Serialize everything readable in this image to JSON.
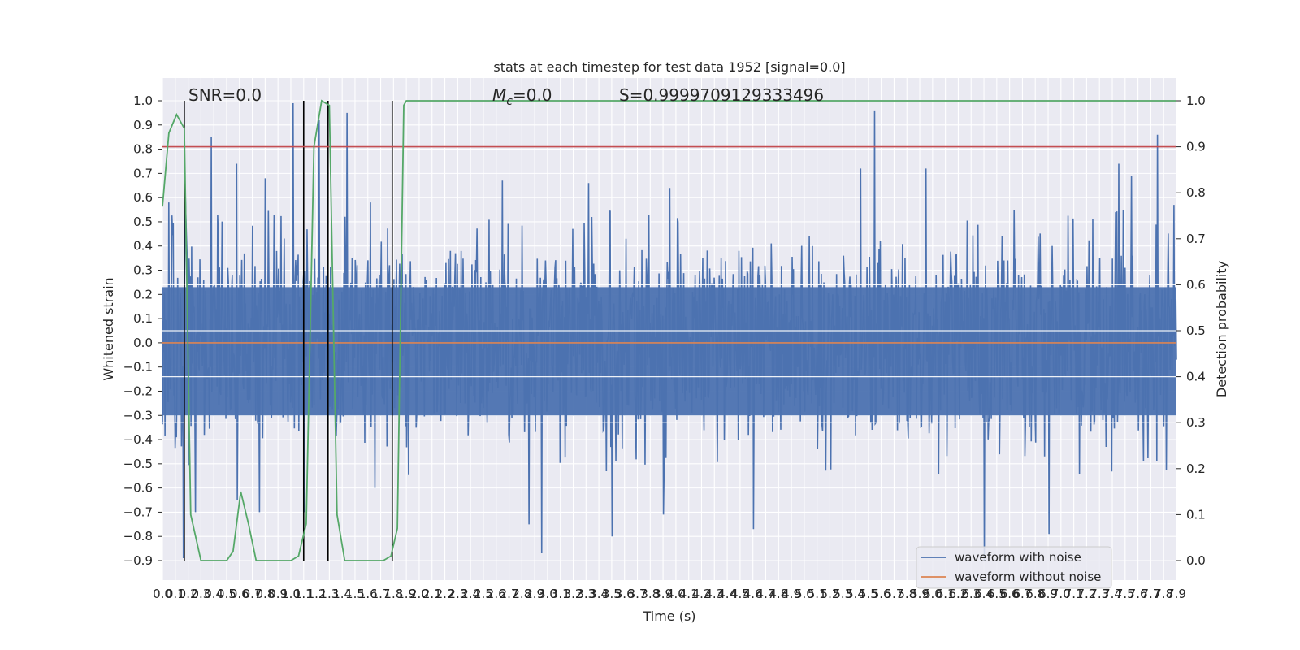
{
  "chart_data": {
    "type": "line",
    "title": "stats at each timestep for test data 1952 [signal=0.0]",
    "xlabel": "Time (s)",
    "ylabel": "Whitened strain",
    "y2label": "Detection probability",
    "xlim": [
      0.0,
      7.9
    ],
    "ylim": [
      -0.9,
      1.0
    ],
    "y2lim": [
      0.0,
      1.0
    ],
    "xticks": [
      "0.0",
      "0.1",
      "0.2",
      "0.3",
      "0.4",
      "0.5",
      "0.6",
      "0.7",
      "0.8",
      "0.9",
      "1.0",
      "1.1",
      "1.2",
      "1.3",
      "1.4",
      "1.5",
      "1.6",
      "1.7",
      "1.8",
      "1.9",
      "2.0",
      "2.1",
      "2.2",
      "2.3",
      "2.4",
      "2.5",
      "2.6",
      "2.7",
      "2.8",
      "2.9",
      "3.0",
      "3.1",
      "3.2",
      "3.3",
      "3.4",
      "3.5",
      "3.6",
      "3.7",
      "3.8",
      "3.9",
      "4.0",
      "4.1",
      "4.2",
      "4.3",
      "4.4",
      "4.5",
      "4.6",
      "4.7",
      "4.8",
      "4.9",
      "5.0",
      "5.1",
      "5.2",
      "5.3",
      "5.4",
      "5.5",
      "5.6",
      "5.7",
      "5.8",
      "5.9",
      "6.0",
      "6.1",
      "6.2",
      "6.3",
      "6.4",
      "6.5",
      "6.6",
      "6.7",
      "6.8",
      "6.9",
      "7.0",
      "7.1",
      "7.2",
      "7.3",
      "7.4",
      "7.5",
      "7.6",
      "7.7",
      "7.8",
      "7.9"
    ],
    "yticks": [
      "1.0",
      "0.9",
      "0.8",
      "0.7",
      "0.6",
      "0.5",
      "0.4",
      "0.3",
      "0.2",
      "0.1",
      "0.0",
      "-0.1",
      "-0.2",
      "-0.3",
      "-0.4",
      "-0.5",
      "-0.6",
      "-0.7",
      "-0.8",
      "-0.9"
    ],
    "y2ticks": [
      "1.0",
      "0.9",
      "0.8",
      "0.7",
      "0.6",
      "0.5",
      "0.4",
      "0.3",
      "0.2",
      "0.1",
      "0.0"
    ],
    "annotations": {
      "snr": "SNR=0.0",
      "mc_symbol": "M",
      "mc_sub": "c",
      "mc_value": "=0.0",
      "s": "S=0.9999709129333496"
    },
    "series": [
      {
        "name": "waveform with noise",
        "color": "#4c72b0",
        "note": "dense noise; envelope peaks (t, y)",
        "peaks_pos": [
          [
            0.05,
            0.58
          ],
          [
            0.18,
            0.62
          ],
          [
            0.38,
            0.85
          ],
          [
            0.58,
            0.74
          ],
          [
            0.8,
            0.68
          ],
          [
            1.02,
            0.99
          ],
          [
            1.22,
            0.92
          ],
          [
            1.44,
            0.95
          ],
          [
            1.62,
            0.58
          ],
          [
            2.65,
            0.67
          ],
          [
            3.32,
            0.66
          ],
          [
            3.95,
            0.64
          ],
          [
            5.44,
            0.72
          ],
          [
            5.55,
            0.96
          ],
          [
            5.95,
            0.72
          ],
          [
            7.45,
            0.74
          ],
          [
            7.55,
            0.69
          ],
          [
            7.75,
            0.86
          ],
          [
            7.88,
            0.57
          ]
        ],
        "peaks_neg": [
          [
            0.16,
            -0.89
          ],
          [
            0.25,
            -0.7
          ],
          [
            0.58,
            -0.65
          ],
          [
            0.75,
            -0.7
          ],
          [
            1.1,
            -0.7
          ],
          [
            1.65,
            -0.6
          ],
          [
            2.85,
            -0.75
          ],
          [
            2.95,
            -0.87
          ],
          [
            3.5,
            -0.8
          ],
          [
            3.9,
            -0.71
          ],
          [
            4.6,
            -0.77
          ],
          [
            6.4,
            -0.9
          ],
          [
            6.9,
            -0.79
          ]
        ],
        "base_amplitude": 0.32
      },
      {
        "name": "waveform without noise",
        "color": "#dd8452",
        "x": [
          0.0,
          7.9
        ],
        "y": [
          0.0,
          0.0
        ]
      },
      {
        "name": "",
        "color": "#55a868",
        "axis": "right",
        "x": [
          0.0,
          0.05,
          0.11,
          0.17,
          0.22,
          0.3,
          0.4,
          0.5,
          0.55,
          0.61,
          0.67,
          0.73,
          0.85,
          1.0,
          1.06,
          1.12,
          1.18,
          1.24,
          1.3,
          1.36,
          1.42,
          1.5,
          1.62,
          1.72,
          1.78,
          1.83,
          1.88,
          1.9,
          2.0,
          7.9
        ],
        "y": [
          0.77,
          0.93,
          0.97,
          0.94,
          0.1,
          0.0,
          0.0,
          0.0,
          0.02,
          0.15,
          0.08,
          0.0,
          0.0,
          0.0,
          0.01,
          0.08,
          0.9,
          1.0,
          0.99,
          0.1,
          0.0,
          0.0,
          0.0,
          0.0,
          0.01,
          0.07,
          0.99,
          1.0,
          1.0,
          1.0
        ]
      }
    ],
    "hlines": [
      {
        "axis": "right",
        "value": 0.9,
        "color": "#c44e52"
      }
    ],
    "vlines": [
      0.17,
      1.1,
      1.29,
      1.79
    ],
    "grid": true,
    "legend": {
      "position": "bottom-right",
      "entries": [
        {
          "label": "waveform with noise",
          "color": "#4c72b0"
        },
        {
          "label": "waveform without noise",
          "color": "#dd8452"
        }
      ]
    }
  }
}
